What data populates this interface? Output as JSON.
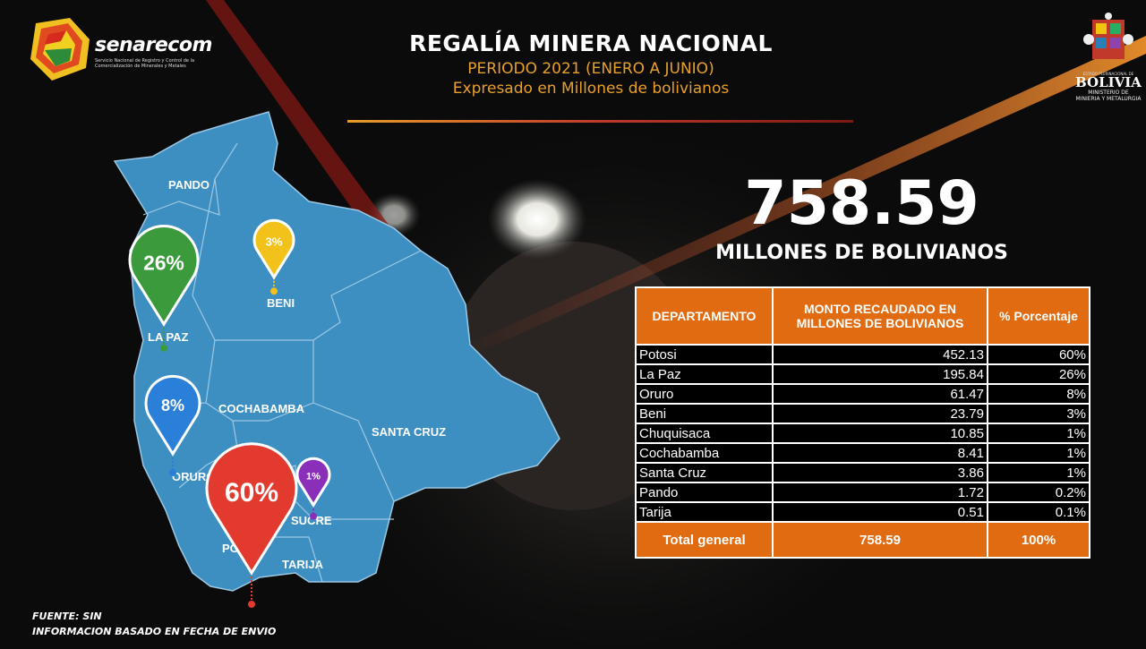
{
  "header": {
    "title": "REGALÍA MINERA NACIONAL",
    "period": "PERIODO 2021 (ENERO A JUNIO)",
    "unit_note": "Expresado en Millones de bolivianos"
  },
  "logo": {
    "name": "senarecom",
    "subtitle": "Servicio Nacional de Registro y Control de la Comercialización de Minerales y Metales"
  },
  "gov_logo": {
    "line1": "ESTADO PLURINACIONAL DE",
    "line2": "BOLIVIA",
    "line3": "MINISTERIO DE",
    "line4": "MINIERIA Y METALURGIA"
  },
  "total": {
    "value": "758.59",
    "unit": "MILLONES DE BOLIVIANOS"
  },
  "map": {
    "labels": [
      "PANDO",
      "BENI",
      "LA PAZ",
      "COCHABAMBA",
      "SANTA CRUZ",
      "ORURO",
      "POTOSÍ",
      "SUCRE",
      "TARIJA"
    ],
    "pins": [
      {
        "dept": "LA PAZ",
        "value": "26%",
        "color": "#3a9a3c"
      },
      {
        "dept": "BENI",
        "value": "3%",
        "color": "#f2c21b"
      },
      {
        "dept": "ORURO",
        "value": "8%",
        "color": "#2a7fd8"
      },
      {
        "dept": "POTOSÍ",
        "value": "60%",
        "color": "#e23a2f"
      },
      {
        "dept": "SUCRE",
        "value": "1%",
        "color": "#8a2fb8"
      }
    ]
  },
  "table": {
    "headers": [
      "DEPARTAMENTO",
      "MONTO RECAUDADO EN MILLONES DE BOLIVIANOS",
      "% Porcentaje"
    ],
    "rows": [
      [
        "Potosi",
        "452.13",
        "60%"
      ],
      [
        "La Paz",
        "195.84",
        "26%"
      ],
      [
        "Oruro",
        "61.47",
        "8%"
      ],
      [
        "Beni",
        "23.79",
        "3%"
      ],
      [
        "Chuquisaca",
        "10.85",
        "1%"
      ],
      [
        "Cochabamba",
        "8.41",
        "1%"
      ],
      [
        "Santa Cruz",
        "3.86",
        "1%"
      ],
      [
        "Pando",
        "1.72",
        "0.2%"
      ],
      [
        "Tarija",
        "0.51",
        "0.1%"
      ]
    ],
    "footer": [
      "Total general",
      "758.59",
      "100%"
    ]
  },
  "source": {
    "line1": "FUENTE: SIN",
    "line2": "INFORMACION BASADO EN FECHA DE ENVIO"
  },
  "colors": {
    "accent": "#e06b10",
    "gold": "#e8a02a",
    "map": "#3a8cc0"
  }
}
